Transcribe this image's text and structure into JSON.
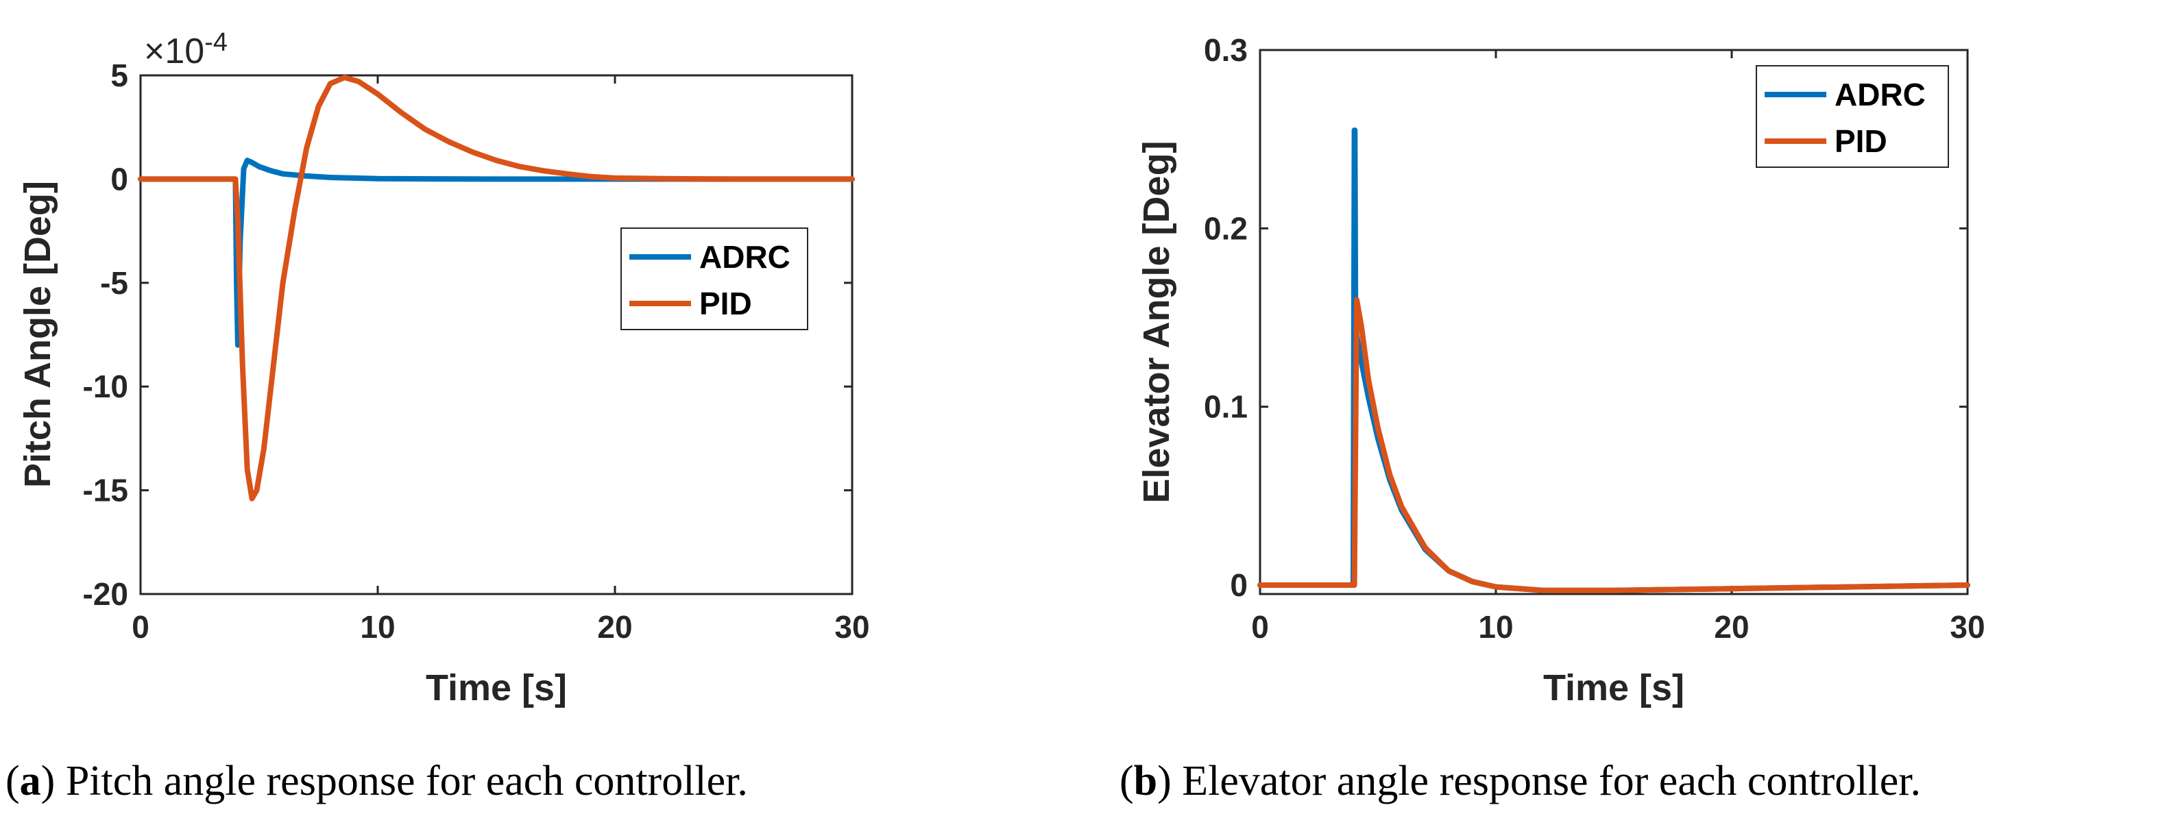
{
  "colors": {
    "adrc": "#0072BD",
    "pid": "#D95319",
    "axis": "#262626"
  },
  "chart_data": [
    {
      "type": "line",
      "panel": "a",
      "xlabel": "Time [s]",
      "ylabel": "Pitch Angle [Deg]",
      "xlim": [
        0,
        30
      ],
      "ylim": [
        -20,
        5
      ],
      "x_ticks": [
        0,
        10,
        20,
        30
      ],
      "x_tick_labels": [
        "0",
        "10",
        "20",
        "30"
      ],
      "y_ticks": [
        5,
        0,
        -5,
        -10,
        -15,
        -20
      ],
      "y_tick_labels": [
        "5",
        "0",
        "-5",
        "-10",
        "-15",
        "-20"
      ],
      "exponent_base": "×10",
      "exponent_power": "-4",
      "legend": [
        "ADRC",
        "PID"
      ],
      "legend_position": "center-right",
      "series": [
        {
          "name": "ADRC",
          "x": [
            0,
            4,
            4.05,
            4.1,
            4.2,
            4.35,
            4.5,
            4.7,
            5,
            5.5,
            6,
            7,
            8,
            10,
            15,
            30
          ],
          "y": [
            0,
            0,
            -5,
            -8,
            -3,
            0.5,
            0.9,
            0.8,
            0.6,
            0.4,
            0.25,
            0.15,
            0.08,
            0.02,
            0,
            0
          ]
        },
        {
          "name": "PID",
          "x": [
            0,
            4,
            4.1,
            4.3,
            4.5,
            4.7,
            4.9,
            5.2,
            5.5,
            6,
            6.5,
            7,
            7.5,
            8,
            8.6,
            9.2,
            10,
            11,
            12,
            13,
            14,
            15,
            16,
            17,
            18,
            19,
            20,
            22,
            25,
            30
          ],
          "y": [
            0,
            0,
            -2,
            -9,
            -14,
            -15.4,
            -15,
            -13,
            -10,
            -5,
            -1.5,
            1.5,
            3.5,
            4.6,
            4.9,
            4.7,
            4.1,
            3.2,
            2.4,
            1.8,
            1.3,
            0.9,
            0.6,
            0.4,
            0.25,
            0.12,
            0.05,
            0.02,
            0,
            0
          ]
        }
      ]
    },
    {
      "type": "line",
      "panel": "b",
      "xlabel": "Time [s]",
      "ylabel": "Elevator Angle [Deg]",
      "xlim": [
        0,
        30
      ],
      "ylim": [
        -0.005,
        0.3
      ],
      "x_ticks": [
        0,
        10,
        20,
        30
      ],
      "x_tick_labels": [
        "0",
        "10",
        "20",
        "30"
      ],
      "y_ticks": [
        0.3,
        0.2,
        0.1,
        0
      ],
      "y_tick_labels": [
        "0.3",
        "0.2",
        "0.1",
        "0"
      ],
      "legend": [
        "ADRC",
        "PID"
      ],
      "legend_position": "top-right",
      "series": [
        {
          "name": "ADRC",
          "x": [
            0,
            3.95,
            4,
            4.02,
            4.05,
            4.1,
            4.3,
            4.6,
            5,
            5.5,
            6,
            7,
            8,
            9,
            10,
            12,
            15,
            20,
            25,
            30
          ],
          "y": [
            0,
            0,
            0.255,
            0.255,
            0.15,
            0.14,
            0.125,
            0.105,
            0.082,
            0.059,
            0.042,
            0.02,
            0.008,
            0.002,
            -0.001,
            -0.003,
            -0.003,
            -0.002,
            -0.001,
            0
          ]
        },
        {
          "name": "PID",
          "x": [
            0,
            3.95,
            4,
            4.1,
            4.3,
            4.6,
            5,
            5.5,
            6,
            7,
            8,
            9,
            10,
            12,
            15,
            20,
            25,
            30
          ],
          "y": [
            0,
            0,
            0.0,
            0.16,
            0.145,
            0.115,
            0.088,
            0.062,
            0.044,
            0.021,
            0.008,
            0.002,
            -0.001,
            -0.003,
            -0.003,
            -0.002,
            -0.001,
            0
          ]
        }
      ]
    }
  ],
  "captions": [
    {
      "label": "a",
      "text": " Pitch angle response for each controller."
    },
    {
      "label": "b",
      "text": " Elevator angle response for each controller."
    }
  ]
}
